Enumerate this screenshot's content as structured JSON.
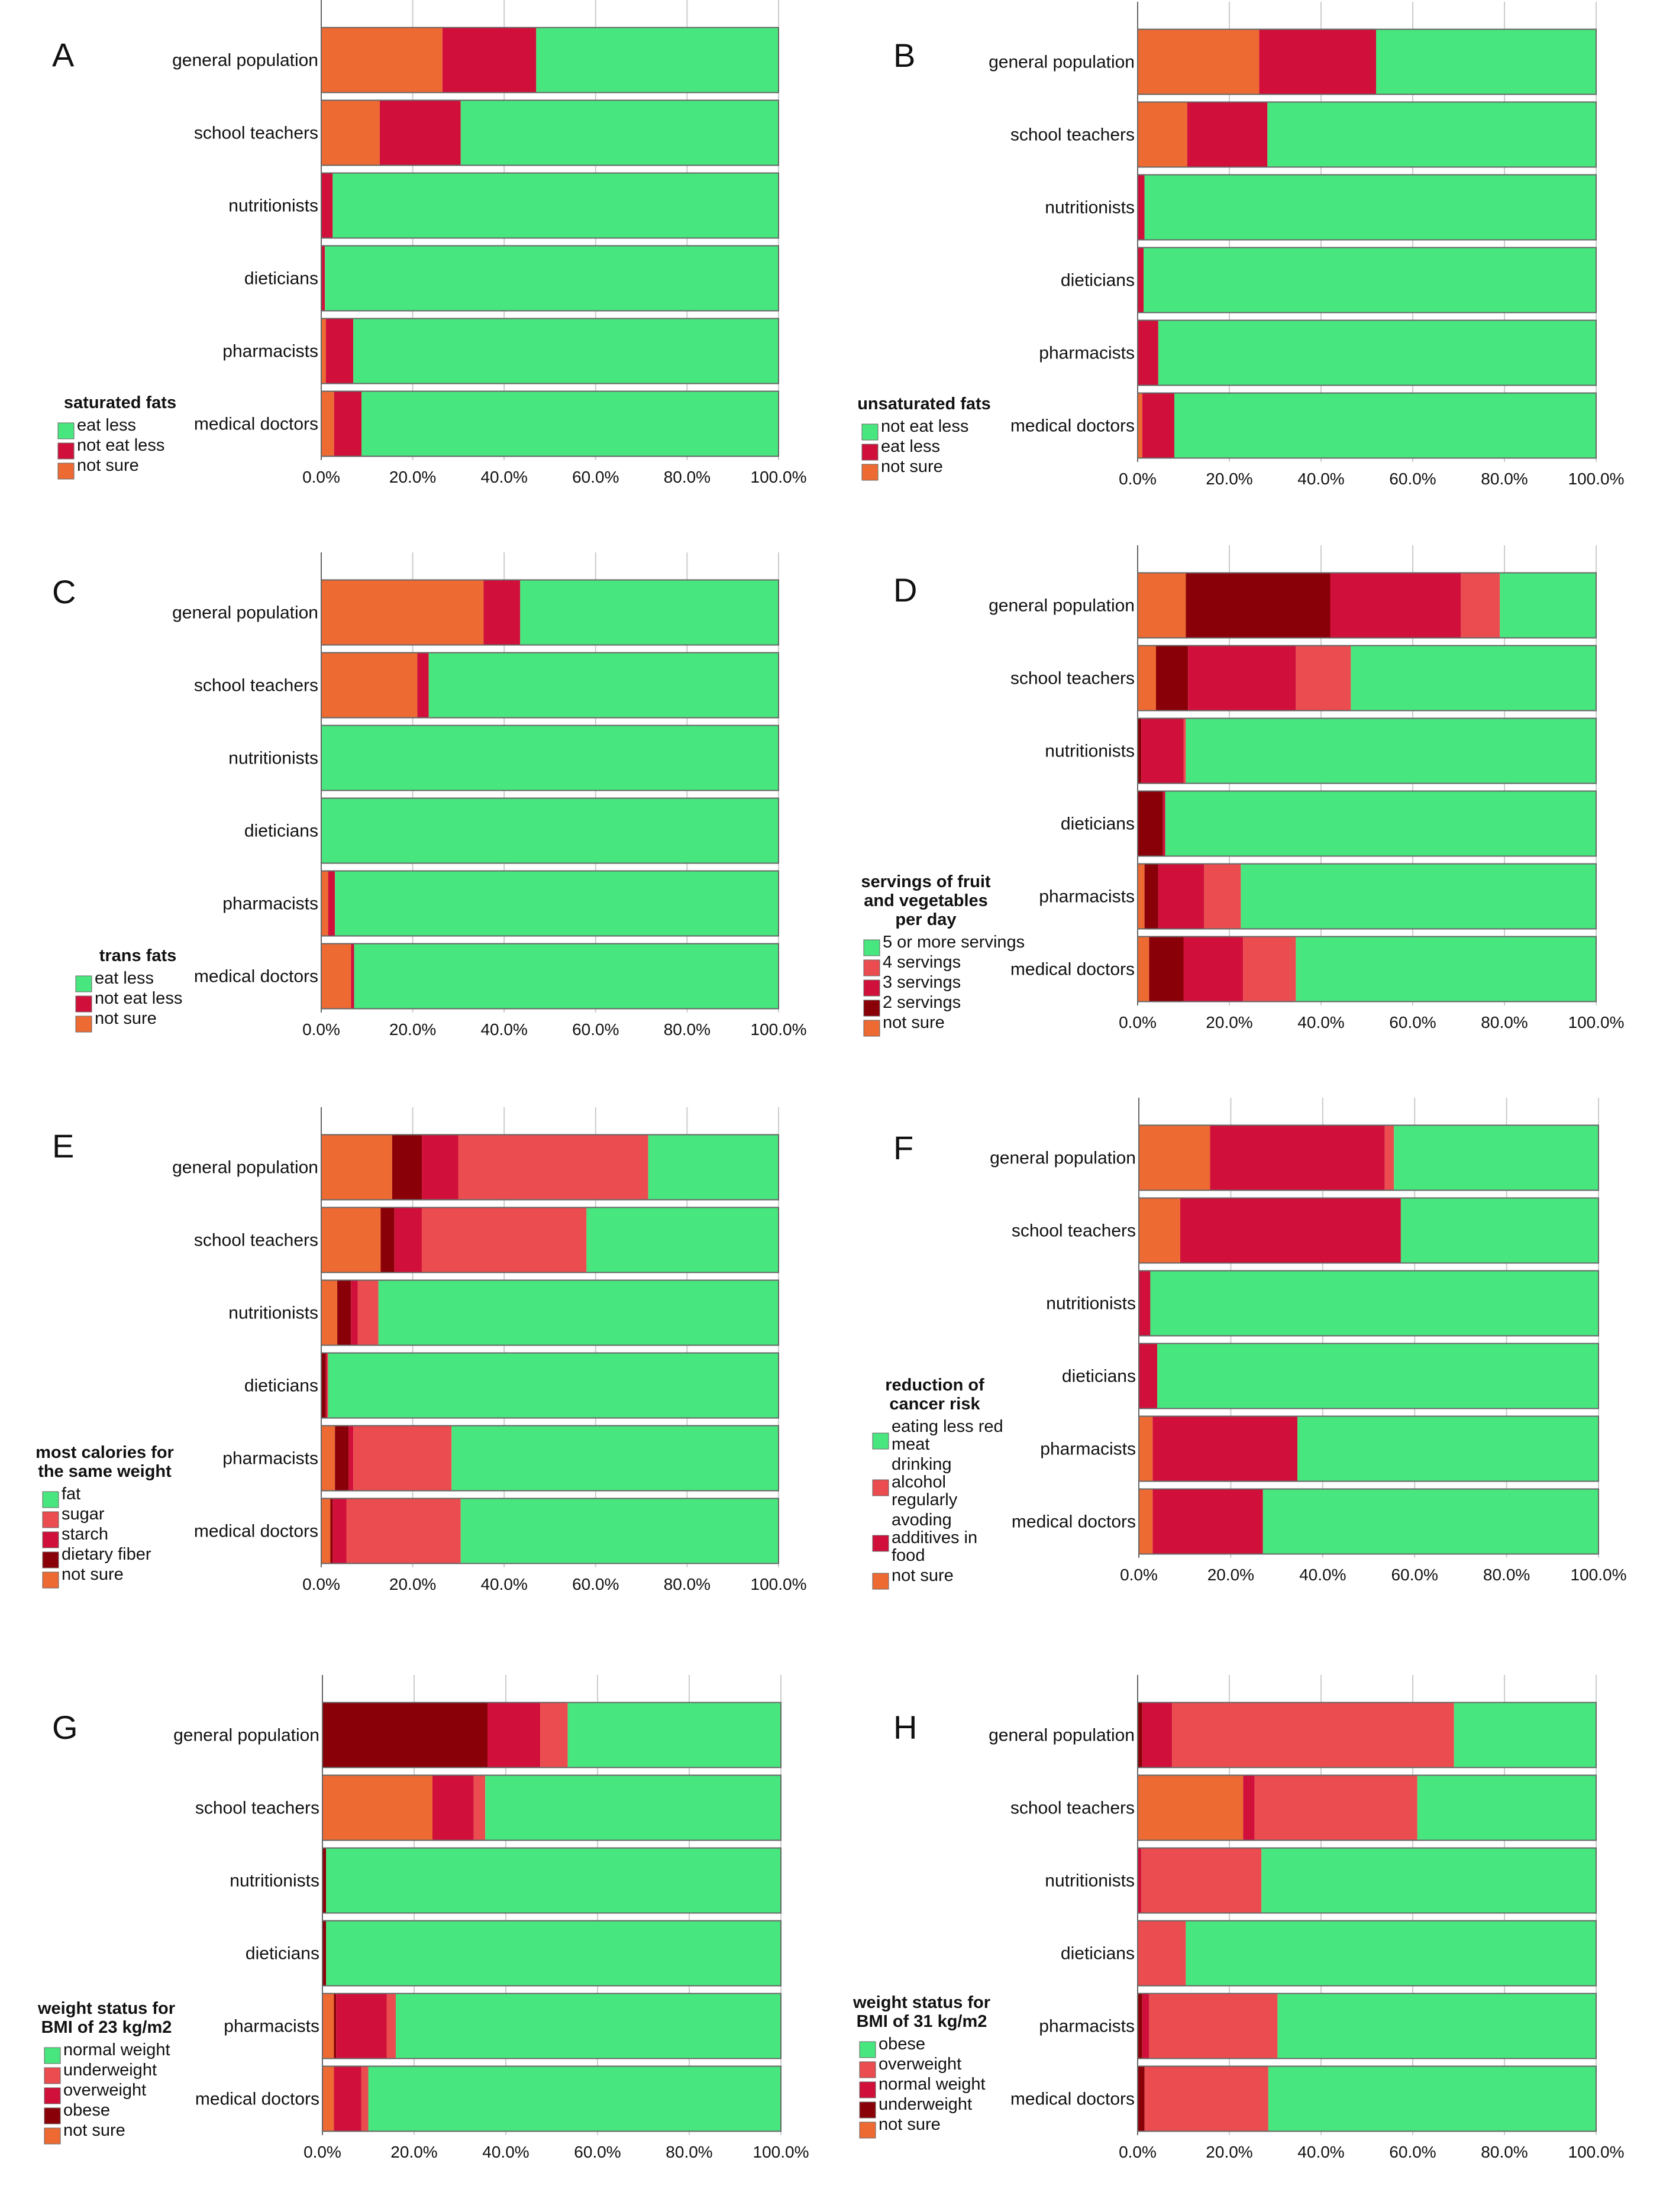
{
  "figure": {
    "description_free": true,
    "colors": {
      "green": "#48e67f",
      "orange": "#ee6a33",
      "red": "#d0103a",
      "lightred": "#ea4c4f",
      "darkred": "#8a0008",
      "frame": "#666666",
      "grid": "#cccccc"
    }
  },
  "chart_data": [
    {
      "type": "bar",
      "orientation": "horizontal",
      "stacked": true,
      "letter": "A",
      "categories": [
        "general population",
        "school teachers",
        "nutritionists",
        "dieticians",
        "pharmacists",
        "medical doctors"
      ],
      "xticks": [
        "0.0%",
        "20.0%",
        "40.0%",
        "60.0%",
        "80.0%",
        "100.0%"
      ],
      "xlim": [
        0,
        100
      ],
      "legend": {
        "title": [
          "saturated fats"
        ],
        "placement": "bottom-left"
      },
      "series": [
        {
          "name": "not sure",
          "color": "orange",
          "values": [
            26.5,
            12.8,
            0.0,
            0.0,
            1.0,
            2.8
          ]
        },
        {
          "name": "not eat less",
          "color": "red",
          "values": [
            20.5,
            17.7,
            2.5,
            0.8,
            6.0,
            6.0
          ]
        },
        {
          "name": "eat less",
          "color": "green",
          "values": [
            53.0,
            69.5,
            97.5,
            99.2,
            93.0,
            91.2
          ]
        }
      ],
      "legend_order": [
        "eat less",
        "not eat less",
        "not sure"
      ]
    },
    {
      "type": "bar",
      "orientation": "horizontal",
      "stacked": true,
      "letter": "B",
      "categories": [
        "general population",
        "school teachers",
        "nutritionists",
        "dieticians",
        "pharmacists",
        "medical doctors"
      ],
      "xticks": [
        "0.0%",
        "20.0%",
        "40.0%",
        "60.0%",
        "80.0%",
        "100.0%"
      ],
      "xlim": [
        0,
        100
      ],
      "legend": {
        "title": [
          "unsaturated fats"
        ],
        "placement": "bottom-left"
      },
      "series": [
        {
          "name": "not sure",
          "color": "orange",
          "values": [
            26.5,
            10.8,
            0.0,
            0.0,
            0.0,
            1.0
          ]
        },
        {
          "name": "eat less",
          "color": "red",
          "values": [
            25.5,
            17.5,
            1.5,
            1.3,
            4.5,
            7.0
          ]
        },
        {
          "name": "not eat less",
          "color": "green",
          "values": [
            48.0,
            71.7,
            98.5,
            98.7,
            95.5,
            92.0
          ]
        }
      ],
      "legend_order": [
        "not eat less",
        "eat less",
        "not sure"
      ]
    },
    {
      "type": "bar",
      "orientation": "horizontal",
      "stacked": true,
      "letter": "C",
      "categories": [
        "general population",
        "school teachers",
        "nutritionists",
        "dieticians",
        "pharmacists",
        "medical doctors"
      ],
      "xticks": [
        "0.0%",
        "20.0%",
        "40.0%",
        "60.0%",
        "80.0%",
        "100.0%"
      ],
      "xlim": [
        0,
        100
      ],
      "legend": {
        "title": [
          "trans fats"
        ],
        "placement": "bottom-left"
      },
      "series": [
        {
          "name": "not sure",
          "color": "orange",
          "values": [
            35.5,
            21.0,
            0.0,
            0.0,
            1.5,
            6.5
          ]
        },
        {
          "name": "not eat less",
          "color": "red",
          "values": [
            8.0,
            2.5,
            0.0,
            0.0,
            1.5,
            0.7
          ]
        },
        {
          "name": "eat less",
          "color": "green",
          "values": [
            56.5,
            76.5,
            100.0,
            100.0,
            97.0,
            92.8
          ]
        }
      ],
      "legend_order": [
        "eat less",
        "not eat less",
        "not sure"
      ]
    },
    {
      "type": "bar",
      "orientation": "horizontal",
      "stacked": true,
      "letter": "D",
      "categories": [
        "general population",
        "school teachers",
        "nutritionists",
        "dieticians",
        "pharmacists",
        "medical doctors"
      ],
      "xticks": [
        "0.0%",
        "20.0%",
        "40.0%",
        "60.0%",
        "80.0%",
        "100.0%"
      ],
      "xlim": [
        0,
        100
      ],
      "legend": {
        "title": [
          "servings of fruit",
          "and vegetables",
          "per day"
        ],
        "placement": "bottom-left"
      },
      "series": [
        {
          "name": "not sure",
          "color": "orange",
          "values": [
            10.5,
            4.0,
            0.0,
            0.0,
            1.5,
            2.5
          ]
        },
        {
          "name": "2 servings",
          "color": "darkred",
          "values": [
            31.5,
            7.0,
            0.8,
            5.5,
            3.0,
            7.5
          ]
        },
        {
          "name": "3 servings",
          "color": "red",
          "values": [
            28.5,
            23.5,
            9.2,
            0.5,
            10.0,
            13.0
          ]
        },
        {
          "name": "4 servings",
          "color": "lightred",
          "values": [
            8.5,
            12.0,
            0.5,
            0.0,
            8.0,
            11.5
          ]
        },
        {
          "name": "5 or more servings",
          "color": "green",
          "values": [
            21.0,
            53.5,
            89.5,
            94.0,
            77.5,
            65.5
          ]
        }
      ],
      "legend_order": [
        "5 or more servings",
        "4 servings",
        "3 servings",
        "2 servings",
        "not sure"
      ]
    },
    {
      "type": "bar",
      "orientation": "horizontal",
      "stacked": true,
      "letter": "E",
      "categories": [
        "general population",
        "school teachers",
        "nutritionists",
        "dieticians",
        "pharmacists",
        "medical doctors"
      ],
      "xticks": [
        "0.0%",
        "20.0%",
        "40.0%",
        "60.0%",
        "80.0%",
        "100.0%"
      ],
      "xlim": [
        0,
        100
      ],
      "legend": {
        "title": [
          "most calories for",
          "the same weight"
        ],
        "placement": "bottom-left"
      },
      "series": [
        {
          "name": "not sure",
          "color": "orange",
          "values": [
            15.5,
            13.0,
            3.5,
            0.0,
            3.0,
            2.0
          ]
        },
        {
          "name": "dietary fiber",
          "color": "darkred",
          "values": [
            6.5,
            3.0,
            3.0,
            1.0,
            3.0,
            0.5
          ]
        },
        {
          "name": "starch",
          "color": "red",
          "values": [
            8.0,
            6.0,
            1.5,
            0.3,
            1.0,
            3.0
          ]
        },
        {
          "name": "sugar",
          "color": "lightred",
          "values": [
            41.5,
            36.0,
            4.5,
            0.2,
            21.5,
            25.0
          ]
        },
        {
          "name": "fat",
          "color": "green",
          "values": [
            28.5,
            42.0,
            87.5,
            98.5,
            71.5,
            69.5
          ]
        }
      ],
      "legend_order": [
        "fat",
        "sugar",
        "starch",
        "dietary fiber",
        "not sure"
      ]
    },
    {
      "type": "bar",
      "orientation": "horizontal",
      "stacked": true,
      "letter": "F",
      "categories": [
        "general population",
        "school teachers",
        "nutritionists",
        "dieticians",
        "pharmacists",
        "medical doctors"
      ],
      "xticks": [
        "0.0%",
        "20.0%",
        "40.0%",
        "60.0%",
        "80.0%",
        "100.0%"
      ],
      "xlim": [
        0,
        100
      ],
      "legend": {
        "title": [
          "reduction of",
          "cancer risk"
        ],
        "placement": "bottom-left"
      },
      "series": [
        {
          "name": "not sure",
          "color": "orange",
          "values": [
            15.5,
            9.0,
            0.0,
            0.0,
            3.0,
            3.0
          ]
        },
        {
          "name": "avoding additives in food",
          "color": "red",
          "values": [
            38.0,
            48.0,
            2.5,
            4.0,
            31.5,
            24.0
          ]
        },
        {
          "name": "drinking alcohol regularly",
          "color": "lightred",
          "values": [
            2.0,
            0.0,
            0.0,
            0.0,
            0.0,
            0.0
          ]
        },
        {
          "name": "eating less red meat",
          "color": "green",
          "values": [
            44.5,
            43.0,
            97.5,
            96.0,
            65.5,
            73.0
          ]
        }
      ],
      "legend_order": [
        "eating less red meat",
        "drinking alcohol regularly",
        "avoding additives in food",
        "not sure"
      ],
      "legend_lines": {
        "eating less red meat": [
          "eating less red",
          "meat"
        ],
        "drinking alcohol regularly": [
          "drinking",
          "alcohol",
          "regularly"
        ],
        "avoding additives in food": [
          "avoding",
          "additives in",
          "food"
        ],
        "not sure": [
          "not sure"
        ]
      }
    },
    {
      "type": "bar",
      "orientation": "horizontal",
      "stacked": true,
      "letter": "G",
      "categories": [
        "general population",
        "school teachers",
        "nutritionists",
        "dieticians",
        "pharmacists",
        "medical doctors"
      ],
      "xticks": [
        "0.0%",
        "20.0%",
        "40.0%",
        "60.0%",
        "80.0%",
        "100.0%"
      ],
      "xlim": [
        0,
        100
      ],
      "legend": {
        "title": [
          "weight status for",
          "BMI of 23 kg/m2"
        ],
        "placement": "bottom-left"
      },
      "series": [
        {
          "name": "not sure",
          "color": "orange",
          "values": [
            0.0,
            24.0,
            0.0,
            0.0,
            2.5,
            2.5
          ]
        },
        {
          "name": "obese",
          "color": "darkred",
          "values": [
            36.0,
            0.0,
            0.8,
            0.8,
            0.5,
            0.0
          ]
        },
        {
          "name": "overweight",
          "color": "red",
          "values": [
            11.5,
            9.0,
            0.0,
            0.0,
            11.0,
            6.0
          ]
        },
        {
          "name": "underweight",
          "color": "lightred",
          "values": [
            6.0,
            2.5,
            0.0,
            0.0,
            2.0,
            1.5
          ]
        },
        {
          "name": "normal weight",
          "color": "green",
          "values": [
            46.5,
            64.5,
            99.2,
            99.2,
            84.0,
            90.0
          ]
        }
      ],
      "legend_order": [
        "normal weight",
        "underweight",
        "overweight",
        "obese",
        "not sure"
      ]
    },
    {
      "type": "bar",
      "orientation": "horizontal",
      "stacked": true,
      "letter": "H",
      "categories": [
        "general population",
        "school teachers",
        "nutritionists",
        "dieticians",
        "pharmacists",
        "medical doctors"
      ],
      "xticks": [
        "0.0%",
        "20.0%",
        "40.0%",
        "60.0%",
        "80.0%",
        "100.0%"
      ],
      "xlim": [
        0,
        100
      ],
      "legend": {
        "title": [
          "weight status for",
          "BMI of 31 kg/m2"
        ],
        "placement": "bottom-left"
      },
      "series": [
        {
          "name": "not sure",
          "color": "orange",
          "values": [
            0.0,
            23.0,
            0.0,
            0.0,
            0.0,
            0.0
          ]
        },
        {
          "name": "underweight",
          "color": "darkred",
          "values": [
            1.0,
            0.0,
            0.0,
            0.0,
            1.0,
            1.5
          ]
        },
        {
          "name": "normal weight",
          "color": "red",
          "values": [
            6.5,
            2.5,
            0.8,
            0.0,
            1.5,
            0.0
          ]
        },
        {
          "name": "overweight",
          "color": "lightred",
          "values": [
            61.5,
            35.5,
            26.2,
            10.5,
            28.0,
            27.0
          ]
        },
        {
          "name": "obese",
          "color": "green",
          "values": [
            31.0,
            39.0,
            73.0,
            89.5,
            69.5,
            71.5
          ]
        }
      ],
      "legend_order": [
        "obese",
        "overweight",
        "normal weight",
        "underweight",
        "not sure"
      ]
    }
  ]
}
